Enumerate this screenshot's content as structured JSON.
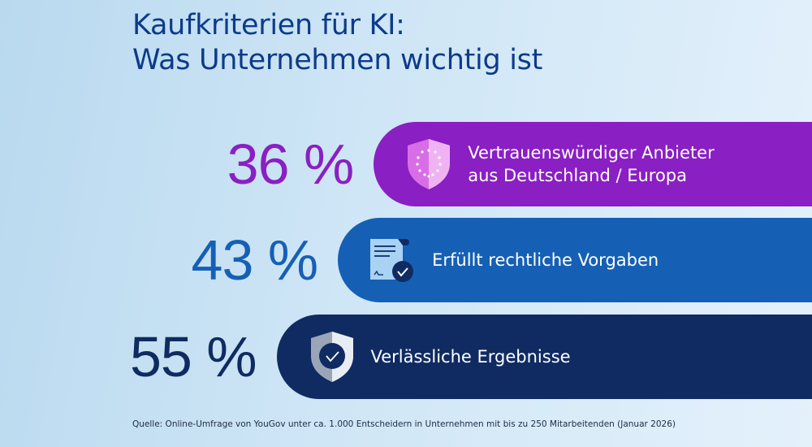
{
  "title": {
    "line1": "Kaufkriterien für KI:",
    "line2": "Was Unternehmen wichtig ist"
  },
  "chart_data": {
    "type": "bar",
    "orientation": "horizontal",
    "categories": [
      "Vertrauenswürdiger Anbieter aus Deutschland / Europa",
      "Erfüllt rechtliche Vorgaben",
      "Verlässliche Ergebnisse"
    ],
    "values": [
      36,
      43,
      55
    ],
    "value_labels": [
      "36 %",
      "43 %",
      "55 %"
    ],
    "label_lines": [
      [
        "Vertrauenswürdiger Anbieter",
        "aus Deutschland / Europa"
      ],
      [
        "Erfüllt rechtliche Vorgaben"
      ],
      [
        "Verlässliche Ergebnisse"
      ]
    ],
    "colors": [
      "#8a1fc3",
      "#1560b5",
      "#0f2b62"
    ],
    "icons": [
      "eu-shield-icon",
      "signed-document-icon",
      "check-shield-icon"
    ],
    "unit": "%"
  },
  "source": "Quelle: Online-Umfrage von YouGov unter ca. 1.000 Entscheidern in Unternehmen mit bis zu 250 Mitarbeitenden (Januar 2026)"
}
